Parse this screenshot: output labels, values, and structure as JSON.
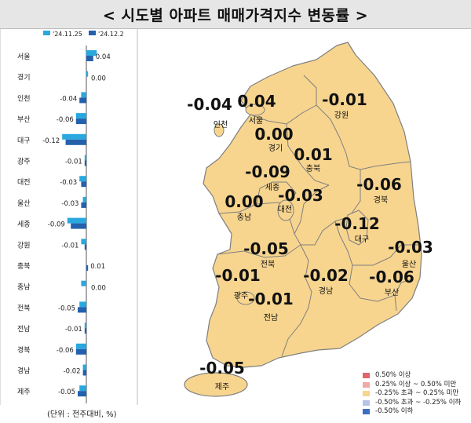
{
  "title": "< 시도별 아파트 매매가격지수 변동률 >",
  "chart_data": {
    "type": "bar",
    "orientation": "horizontal",
    "legend": [
      "'24.11.25",
      "'24.12.2"
    ],
    "colors": {
      "prev": "#29a8e0",
      "curr": "#2461ad"
    },
    "categories": [
      "서울",
      "경기",
      "인천",
      "부산",
      "대구",
      "광주",
      "대전",
      "울산",
      "세종",
      "강원",
      "충북",
      "충남",
      "전북",
      "전남",
      "경북",
      "경남",
      "제주"
    ],
    "series": [
      {
        "name": "'24.11.25",
        "values": [
          0.06,
          0.01,
          -0.03,
          -0.06,
          -0.14,
          -0.01,
          -0.04,
          -0.02,
          -0.11,
          -0.03,
          0.0,
          -0.03,
          -0.04,
          -0.01,
          -0.06,
          -0.02,
          -0.04
        ]
      },
      {
        "name": "'24.12.2",
        "values": [
          0.04,
          0.0,
          -0.04,
          -0.06,
          -0.12,
          -0.01,
          -0.03,
          -0.03,
          -0.09,
          -0.01,
          0.01,
          0.0,
          -0.05,
          -0.01,
          -0.06,
          -0.02,
          -0.05
        ]
      }
    ],
    "labels": [
      "0.04",
      "0.00",
      "-0.04",
      "-0.06",
      "-0.12",
      "-0.01",
      "-0.03",
      "-0.03",
      "-0.09",
      "-0.01",
      "0.01",
      "0.00",
      "-0.05",
      "-0.01",
      "-0.06",
      "-0.02",
      "-0.05"
    ],
    "unit_note": "(단위 : 전주대비, %)"
  },
  "map": {
    "fill": "#f7d58f",
    "stroke": "#7f7f7f",
    "regions": [
      {
        "name": "인천",
        "value": "-0.04"
      },
      {
        "name": "서울",
        "value": "0.04"
      },
      {
        "name": "강원",
        "value": "-0.01"
      },
      {
        "name": "경기",
        "value": "0.00"
      },
      {
        "name": "충북",
        "value": "0.01"
      },
      {
        "name": "세종",
        "value": "-0.09"
      },
      {
        "name": "대전",
        "value": "-0.03"
      },
      {
        "name": "경북",
        "value": "-0.06"
      },
      {
        "name": "충남",
        "value": "0.00"
      },
      {
        "name": "대구",
        "value": "-0.12"
      },
      {
        "name": "울산",
        "value": "-0.03"
      },
      {
        "name": "전북",
        "value": "-0.05"
      },
      {
        "name": "광주",
        "value": "-0.01"
      },
      {
        "name": "경남",
        "value": "-0.02"
      },
      {
        "name": "부산",
        "value": "-0.06"
      },
      {
        "name": "전남",
        "value": "-0.01"
      },
      {
        "name": "제주",
        "value": "-0.05"
      }
    ],
    "legend": [
      {
        "label": "0.50% 이상",
        "color": "#e0666b"
      },
      {
        "label": "0.25% 이상 ~ 0.50% 미만",
        "color": "#f1a9a6"
      },
      {
        "label": "-0.25% 초과 ~ 0.25% 미만",
        "color": "#f7d58f"
      },
      {
        "label": "-0.50% 초과 ~ -0.25% 이하",
        "color": "#b4c3e6"
      },
      {
        "label": "-0.50% 이하",
        "color": "#3d6ec0"
      }
    ]
  }
}
